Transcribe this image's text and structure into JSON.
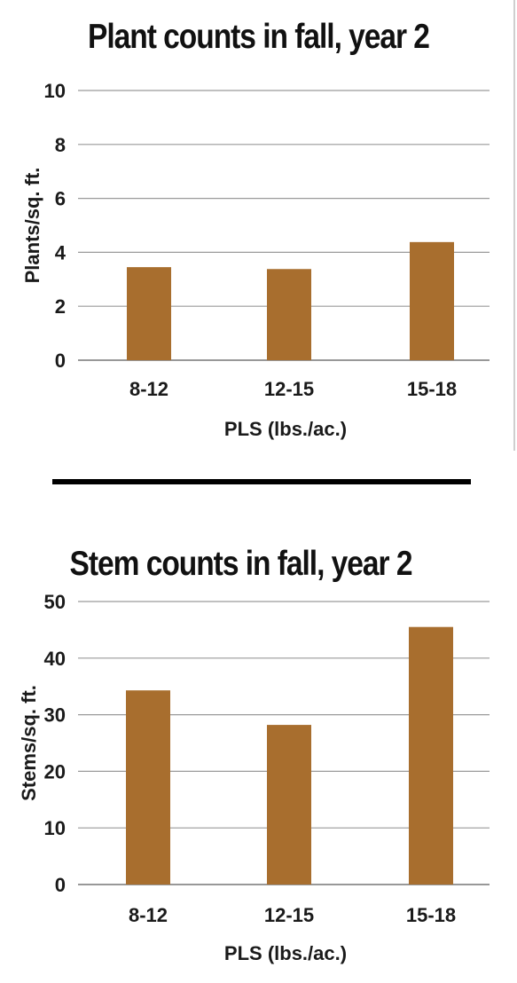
{
  "colors": {
    "bar": "#a86e2e",
    "grid": "#9a9a9a",
    "axis": "#777777",
    "text": "#1a1a1a"
  },
  "chart_data": [
    {
      "type": "bar",
      "title": "Plant counts in fall, year 2",
      "xlabel": "PLS (lbs./ac.)",
      "ylabel": "Plants/sq. ft.",
      "categories": [
        "8-12",
        "12-15",
        "15-18"
      ],
      "values": [
        3.45,
        3.38,
        4.38
      ],
      "ylim": [
        0,
        10
      ],
      "yticks": [
        0,
        2,
        4,
        6,
        8,
        10
      ],
      "grid": true
    },
    {
      "type": "bar",
      "title": "Stem counts in fall, year 2",
      "xlabel": "PLS (lbs./ac.)",
      "ylabel": "Stems/sq. ft.",
      "categories": [
        "8-12",
        "12-15",
        "15-18"
      ],
      "values": [
        34.3,
        28.2,
        45.5
      ],
      "ylim": [
        0,
        50
      ],
      "yticks": [
        0,
        10,
        20,
        30,
        40,
        50
      ],
      "grid": true
    }
  ]
}
